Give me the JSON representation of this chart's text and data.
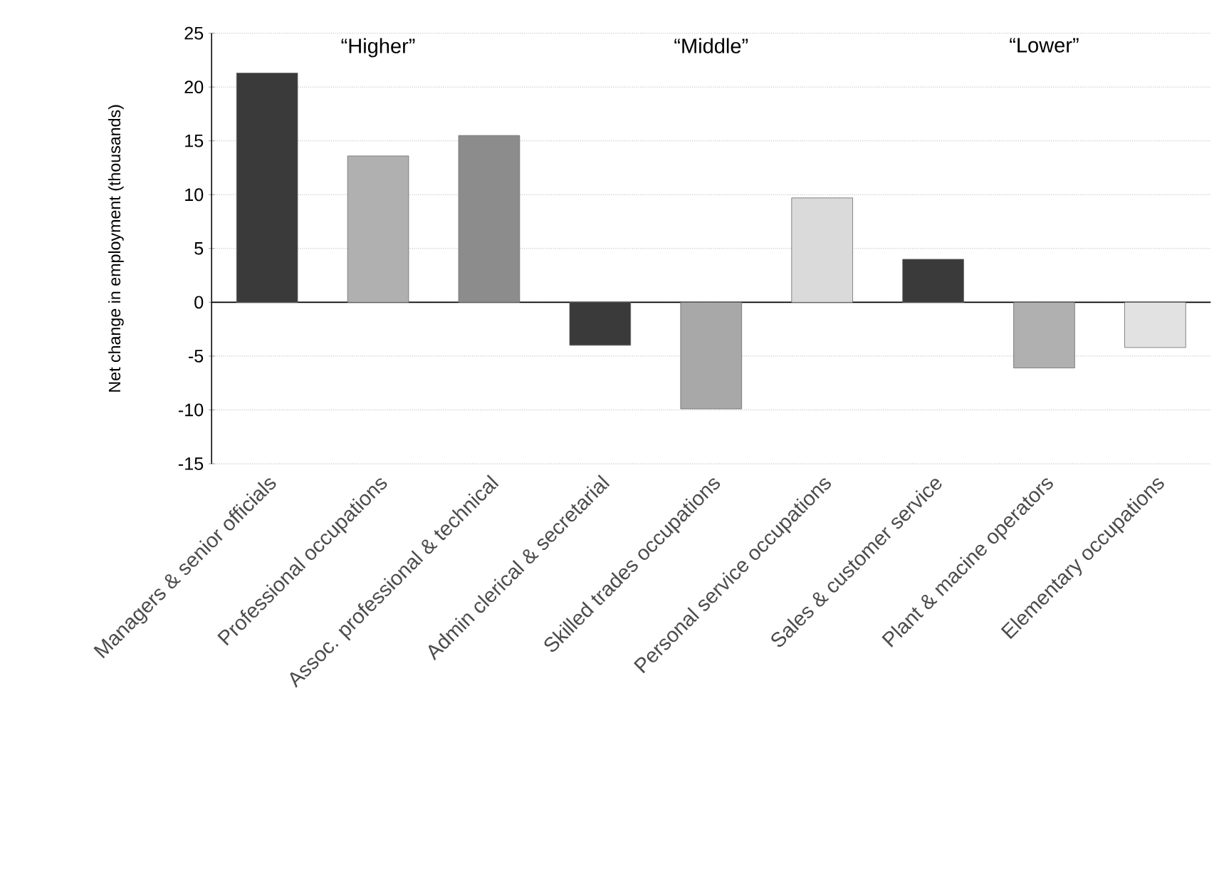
{
  "chart_data": {
    "type": "bar",
    "ylabel": "Net change in employment (thousands)",
    "categories": [
      "Managers & senior officials",
      "Professional occupations",
      "Assoc. professional & technical",
      "Admin clerical & secretarial",
      "Skilled trades occupations",
      "Personal service occupations",
      "Sales & customer service",
      "Plant & macine operators",
      "Elementary occupations"
    ],
    "values": [
      21.3,
      13.6,
      15.5,
      -4.0,
      -9.9,
      9.7,
      4.0,
      -6.1,
      -4.2
    ],
    "colors": [
      "#3a3a3a",
      "#b0b0b0",
      "#8c8c8c",
      "#3a3a3a",
      "#a8a8a8",
      "#dadada",
      "#3a3a3a",
      "#b0b0b0",
      "#e2e2e2"
    ],
    "ylim": [
      -15,
      25
    ],
    "yticks": [
      -15,
      -10,
      -5,
      0,
      5,
      10,
      15,
      20,
      25
    ],
    "grid": "y",
    "annotations": [
      "“Higher”",
      "“Middle”",
      "“Lower”"
    ]
  }
}
